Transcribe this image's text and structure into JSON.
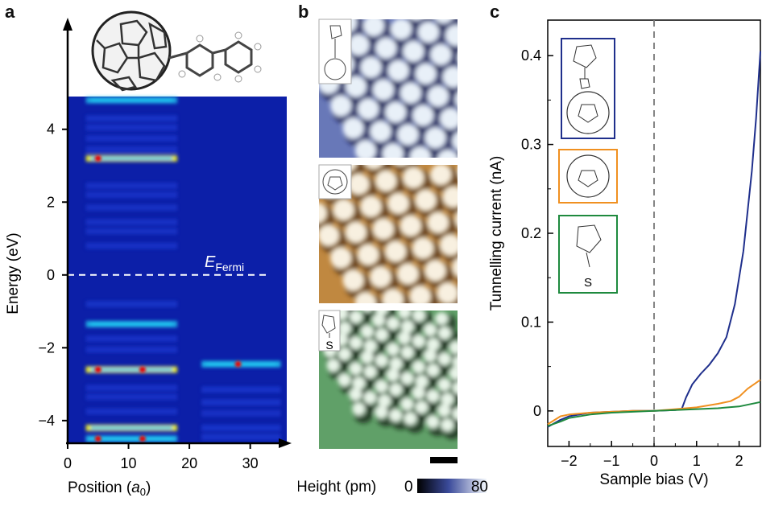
{
  "panels": {
    "a": "a",
    "b": "b",
    "c": "c"
  },
  "chart_data": [
    {
      "panel": "a",
      "type": "heatmap",
      "xlabel_main": "Position (",
      "xlabel_sym": "a",
      "xlabel_sub": "0",
      "xlabel_end": ")",
      "ylabel": "Energy (eV)",
      "xlim": [
        0,
        36
      ],
      "ylim": [
        -4.6,
        4.9
      ],
      "x_ticks": [
        0,
        10,
        20,
        30
      ],
      "y_ticks": [
        -4,
        -2,
        0,
        2,
        4
      ],
      "y_tick_labels": [
        "−4",
        "−2",
        "0",
        "2",
        "4"
      ],
      "fermi_label_main": "E",
      "fermi_label_sub": "Fermi",
      "fermi_level": 0,
      "colors": {
        "background": "#0c1fa8",
        "low": "#1a3ad0",
        "mid": "#22c8f0",
        "high": "#f0f020",
        "peak": "#e01010"
      },
      "bands": [
        {
          "e": 4.8,
          "x0": 3,
          "x1": 18,
          "i": 0.55
        },
        {
          "e": 4.3,
          "x0": 3,
          "x1": 18,
          "i": 0.35
        },
        {
          "e": 4.05,
          "x0": 3,
          "x1": 18,
          "i": 0.3
        },
        {
          "e": 3.75,
          "x0": 3,
          "x1": 18,
          "i": 0.3
        },
        {
          "e": 3.45,
          "x0": 3,
          "x1": 18,
          "i": 0.32
        },
        {
          "e": 3.2,
          "x0": 3,
          "x1": 18,
          "i": 0.85
        },
        {
          "e": 2.45,
          "x0": 3,
          "x1": 18,
          "i": 0.3
        },
        {
          "e": 2.2,
          "x0": 3,
          "x1": 18,
          "i": 0.3
        },
        {
          "e": 1.85,
          "x0": 3,
          "x1": 18,
          "i": 0.28
        },
        {
          "e": 1.45,
          "x0": 3,
          "x1": 18,
          "i": 0.3
        },
        {
          "e": 1.2,
          "x0": 3,
          "x1": 18,
          "i": 0.28
        },
        {
          "e": 0.8,
          "x0": 3,
          "x1": 18,
          "i": 0.3
        },
        {
          "e": -0.8,
          "x0": 3,
          "x1": 18,
          "i": 0.35
        },
        {
          "e": -1.35,
          "x0": 3,
          "x1": 18,
          "i": 0.6
        },
        {
          "e": -1.75,
          "x0": 3,
          "x1": 18,
          "i": 0.3
        },
        {
          "e": -2.05,
          "x0": 3,
          "x1": 18,
          "i": 0.3
        },
        {
          "e": -2.6,
          "x0": 3,
          "x1": 18,
          "i": 0.9
        },
        {
          "e": -3.1,
          "x0": 3,
          "x1": 18,
          "i": 0.3
        },
        {
          "e": -3.35,
          "x0": 3,
          "x1": 18,
          "i": 0.3
        },
        {
          "e": -3.75,
          "x0": 3,
          "x1": 18,
          "i": 0.3
        },
        {
          "e": -4.2,
          "x0": 3,
          "x1": 18,
          "i": 0.9
        },
        {
          "e": -4.5,
          "x0": 3,
          "x1": 18,
          "i": 0.75
        },
        {
          "e": -2.45,
          "x0": 22,
          "x1": 35,
          "i": 0.7
        },
        {
          "e": -3.15,
          "x0": 22,
          "x1": 35,
          "i": 0.45
        },
        {
          "e": -3.5,
          "x0": 22,
          "x1": 35,
          "i": 0.45
        },
        {
          "e": -3.8,
          "x0": 22,
          "x1": 35,
          "i": 0.3
        },
        {
          "e": -4.2,
          "x0": 22,
          "x1": 35,
          "i": 0.5
        },
        {
          "e": -4.45,
          "x0": 22,
          "x1": 35,
          "i": 0.45
        }
      ],
      "hotspots": [
        {
          "x": 5,
          "e": 3.2
        },
        {
          "x": 12.3,
          "e": -2.6
        },
        {
          "x": 5,
          "e": -2.6
        },
        {
          "x": 28,
          "e": -2.45
        },
        {
          "x": 5,
          "e": -4.5
        },
        {
          "x": 12.3,
          "e": -4.5
        }
      ]
    },
    {
      "panel": "b",
      "type": "heatmap",
      "colorbar_label": "Height (pm)",
      "colorbar_min": "0",
      "colorbar_max": "80",
      "images": [
        {
          "name": "c60-derivative",
          "palette": [
            "#1a2050",
            "#6878b8",
            "#e8f0f8"
          ]
        },
        {
          "name": "c60",
          "palette": [
            "#503010",
            "#c08840",
            "#f8f0e0"
          ]
        },
        {
          "name": "cage-thiol",
          "palette": [
            "#102010",
            "#60a068",
            "#e8f4e8"
          ]
        }
      ],
      "s_label": "S"
    },
    {
      "panel": "c",
      "type": "line",
      "xlabel": "Sample bias (V)",
      "ylabel": "Tunnelling current (nA)",
      "xlim": [
        -2.5,
        2.5
      ],
      "ylim": [
        -0.04,
        0.44
      ],
      "x_ticks": [
        -2,
        -1,
        0,
        1,
        2
      ],
      "x_tick_labels": [
        "−2",
        "−1",
        "0",
        "1",
        "2"
      ],
      "y_ticks": [
        0,
        0.1,
        0.2,
        0.3,
        0.4
      ],
      "y_tick_labels": [
        "0",
        "0.1",
        "0.2",
        "0.3",
        "0.4"
      ],
      "series": [
        {
          "color": "#1f2f8c",
          "x": [
            -2.5,
            -2.2,
            -2.0,
            -1.5,
            -1.0,
            -0.5,
            0,
            0.5,
            0.65,
            0.75,
            0.9,
            1.1,
            1.3,
            1.5,
            1.7,
            1.9,
            2.1,
            2.3,
            2.4,
            2.5
          ],
          "y": [
            -0.018,
            -0.01,
            -0.006,
            -0.002,
            -0.001,
            0,
            0,
            0.001,
            0.002,
            0.015,
            0.03,
            0.042,
            0.052,
            0.065,
            0.083,
            0.12,
            0.18,
            0.27,
            0.33,
            0.405
          ]
        },
        {
          "color": "#f09020",
          "x": [
            -2.5,
            -2.2,
            -2.0,
            -1.5,
            -1.0,
            -0.5,
            0,
            0.5,
            1.0,
            1.5,
            1.8,
            2.0,
            2.2,
            2.5
          ],
          "y": [
            -0.015,
            -0.006,
            -0.004,
            -0.002,
            -0.001,
            0,
            0,
            0.002,
            0.004,
            0.008,
            0.011,
            0.016,
            0.025,
            0.035
          ]
        },
        {
          "color": "#1e8a3e",
          "x": [
            -2.5,
            -2.2,
            -2.0,
            -1.5,
            -1.0,
            -0.5,
            0,
            0.5,
            1.0,
            1.5,
            2.0,
            2.5
          ],
          "y": [
            -0.017,
            -0.012,
            -0.008,
            -0.004,
            -0.002,
            -0.001,
            0,
            0.001,
            0.002,
            0.003,
            0.005,
            0.01
          ]
        }
      ],
      "inset_s_label": "S",
      "inset_colors": [
        "#1f2f8c",
        "#f09020",
        "#1e8a3e"
      ]
    }
  ]
}
